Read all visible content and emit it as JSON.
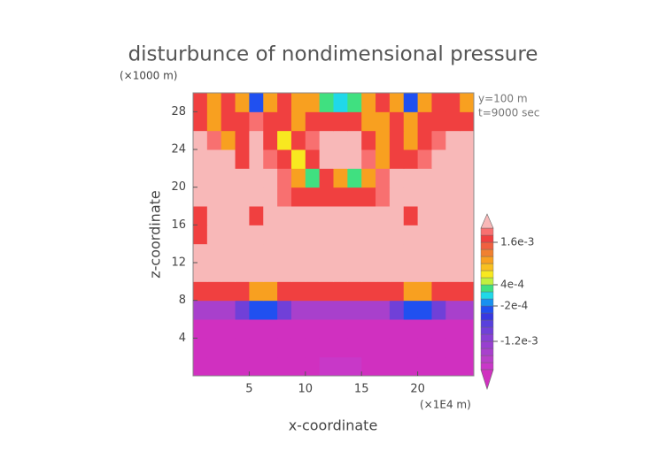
{
  "chart_data": {
    "type": "contour",
    "title": "disturbunce of nondimensional pressure",
    "x_label": "x-coordinate",
    "y_label": "z-coordinate",
    "x_unit": "(×1E4 m)",
    "y_unit": "(×1000 m)",
    "annotations": [
      "y=100 m",
      "t=9000 sec"
    ],
    "xlim": [
      0,
      25
    ],
    "ylim": [
      0,
      30
    ],
    "xticks": [
      5,
      10,
      15,
      20
    ],
    "yticks": [
      4,
      8,
      12,
      16,
      20,
      24,
      28
    ],
    "x": [
      0.625,
      1.875,
      3.125,
      4.375,
      5.625,
      6.875,
      8.125,
      9.375,
      10.625,
      11.875,
      13.125,
      14.375,
      15.625,
      16.875,
      18.125,
      19.375,
      20.625,
      21.875,
      23.125,
      24.375
    ],
    "y": [
      1,
      3,
      5,
      7,
      9,
      11,
      13,
      15,
      17,
      19,
      21,
      23,
      25,
      27,
      29
    ],
    "z": [
      [
        -0.0025,
        -0.0025,
        -0.0025,
        -0.0025,
        -0.0025,
        -0.0025,
        -0.0025,
        -0.0025,
        -0.0025,
        -0.0019,
        -0.0019,
        -0.0019,
        -0.0025,
        -0.0025,
        -0.0025,
        -0.0025,
        -0.0025,
        -0.0025,
        -0.0025,
        -0.0025
      ],
      [
        -0.0025,
        -0.0025,
        -0.0025,
        -0.0025,
        -0.0025,
        -0.0025,
        -0.0025,
        -0.0025,
        -0.0025,
        -0.0025,
        -0.0025,
        -0.0025,
        -0.0025,
        -0.0025,
        -0.0025,
        -0.0025,
        -0.0025,
        -0.0025,
        -0.0025,
        -0.0025
      ],
      [
        -0.0025,
        -0.0025,
        -0.0025,
        -0.0025,
        -0.0025,
        -0.0025,
        -0.0025,
        -0.0025,
        -0.0025,
        -0.0025,
        -0.0025,
        -0.0025,
        -0.0025,
        -0.0025,
        -0.0025,
        -0.0025,
        -0.0025,
        -0.0025,
        -0.0025,
        -0.0025
      ],
      [
        -0.0015,
        -0.0015,
        -0.0015,
        -0.0009,
        -0.0003,
        -0.0003,
        -0.0009,
        -0.0015,
        -0.0015,
        -0.0015,
        -0.0015,
        -0.0015,
        -0.0015,
        -0.0015,
        -0.0009,
        -0.0003,
        -0.0003,
        -0.0009,
        -0.0015,
        -0.0015
      ],
      [
        0.0017,
        0.0017,
        0.0017,
        0.0017,
        0.0011,
        0.0011,
        0.0017,
        0.0017,
        0.0017,
        0.0017,
        0.0017,
        0.0017,
        0.0017,
        0.0017,
        0.0017,
        0.0011,
        0.0011,
        0.0017,
        0.0017,
        0.0017
      ],
      [
        0.0025,
        0.0025,
        0.0025,
        0.0025,
        0.0025,
        0.0025,
        0.0025,
        0.0025,
        0.0025,
        0.0025,
        0.0025,
        0.0025,
        0.0025,
        0.0025,
        0.0025,
        0.0025,
        0.0025,
        0.0025,
        0.0025,
        0.0025
      ],
      [
        0.0025,
        0.0025,
        0.0025,
        0.0025,
        0.0025,
        0.0025,
        0.0025,
        0.0025,
        0.0025,
        0.0025,
        0.0025,
        0.0025,
        0.0025,
        0.0025,
        0.0025,
        0.0025,
        0.0025,
        0.0025,
        0.0025,
        0.0025
      ],
      [
        0.0017,
        0.0025,
        0.0025,
        0.0025,
        0.0025,
        0.0025,
        0.0025,
        0.0025,
        0.0025,
        0.0025,
        0.0025,
        0.0025,
        0.0025,
        0.0025,
        0.0025,
        0.0025,
        0.0025,
        0.0025,
        0.0025,
        0.0025
      ],
      [
        0.0017,
        0.0025,
        0.0025,
        0.0025,
        0.0017,
        0.0025,
        0.0025,
        0.0025,
        0.0025,
        0.0025,
        0.0025,
        0.0025,
        0.0025,
        0.0025,
        0.0025,
        0.0017,
        0.0025,
        0.0025,
        0.0025,
        0.0025
      ],
      [
        0.0025,
        0.0025,
        0.0025,
        0.0025,
        0.0025,
        0.0025,
        0.0019,
        0.0017,
        0.0017,
        0.0017,
        0.0017,
        0.0017,
        0.0017,
        0.0019,
        0.0025,
        0.0025,
        0.0025,
        0.0025,
        0.0025,
        0.0025
      ],
      [
        0.0025,
        0.0025,
        0.0025,
        0.0025,
        0.0025,
        0.0025,
        0.0019,
        0.0011,
        0.0003,
        0.0017,
        0.0011,
        0.0003,
        0.0011,
        0.0019,
        0.0025,
        0.0025,
        0.0025,
        0.0025,
        0.0025,
        0.0025
      ],
      [
        0.0025,
        0.0025,
        0.0025,
        0.0017,
        0.0025,
        0.0019,
        0.0017,
        0.0007,
        0.0017,
        0.0025,
        0.0025,
        0.0025,
        0.0019,
        0.0011,
        0.0017,
        0.0017,
        0.0019,
        0.0025,
        0.0025,
        0.0025
      ],
      [
        0.0025,
        0.0019,
        0.0011,
        0.0017,
        0.0025,
        0.0017,
        0.0007,
        0.0017,
        0.0019,
        0.0025,
        0.0025,
        0.0025,
        0.0017,
        0.0011,
        0.0017,
        0.0011,
        0.0017,
        0.0019,
        0.0025,
        0.0025
      ],
      [
        0.0017,
        0.0011,
        0.0017,
        0.0017,
        0.0019,
        0.0017,
        0.0017,
        0.0011,
        0.0017,
        0.0017,
        0.0017,
        0.0017,
        0.0011,
        0.0011,
        0.0017,
        0.0011,
        0.0017,
        0.0017,
        0.0017,
        0.0017
      ],
      [
        0.0017,
        0.0011,
        0.0017,
        0.0011,
        -0.0003,
        0.0011,
        0.0017,
        0.0011,
        0.0011,
        0.0003,
        0.0001,
        0.0003,
        0.0011,
        0.0017,
        0.0011,
        -0.0003,
        0.0011,
        0.0017,
        0.0017,
        0.0011
      ]
    ],
    "levels": [
      -0.002,
      -0.0018,
      -0.0016,
      -0.0014,
      -0.0012,
      -0.001,
      -0.0008,
      -0.0006,
      -0.0004,
      -0.0002,
      0,
      0.0002,
      0.0004,
      0.0006,
      0.0008,
      0.001,
      0.0012,
      0.0014,
      0.0016,
      0.0018,
      0.002
    ],
    "colors": [
      "#d030c0",
      "#c838c8",
      "#b840c8",
      "#a840cc",
      "#9840d0",
      "#8840d4",
      "#7040d8",
      "#5840dc",
      "#3838e0",
      "#2050f0",
      "#1890f0",
      "#20d8e8",
      "#40e080",
      "#c0f040",
      "#f8e820",
      "#f8c020",
      "#f8a020",
      "#f08030",
      "#f06040",
      "#f04040",
      "#f87070",
      "#f8b8b8"
    ],
    "colorbar_ticks": [
      {
        "value": 0.0016,
        "label": "1.6e-3"
      },
      {
        "value": 0.0004,
        "label": "4e-4"
      },
      {
        "value": -0.0002,
        "label": "-2e-4"
      },
      {
        "value": -0.0012,
        "label": "-1.2e-3"
      }
    ]
  }
}
